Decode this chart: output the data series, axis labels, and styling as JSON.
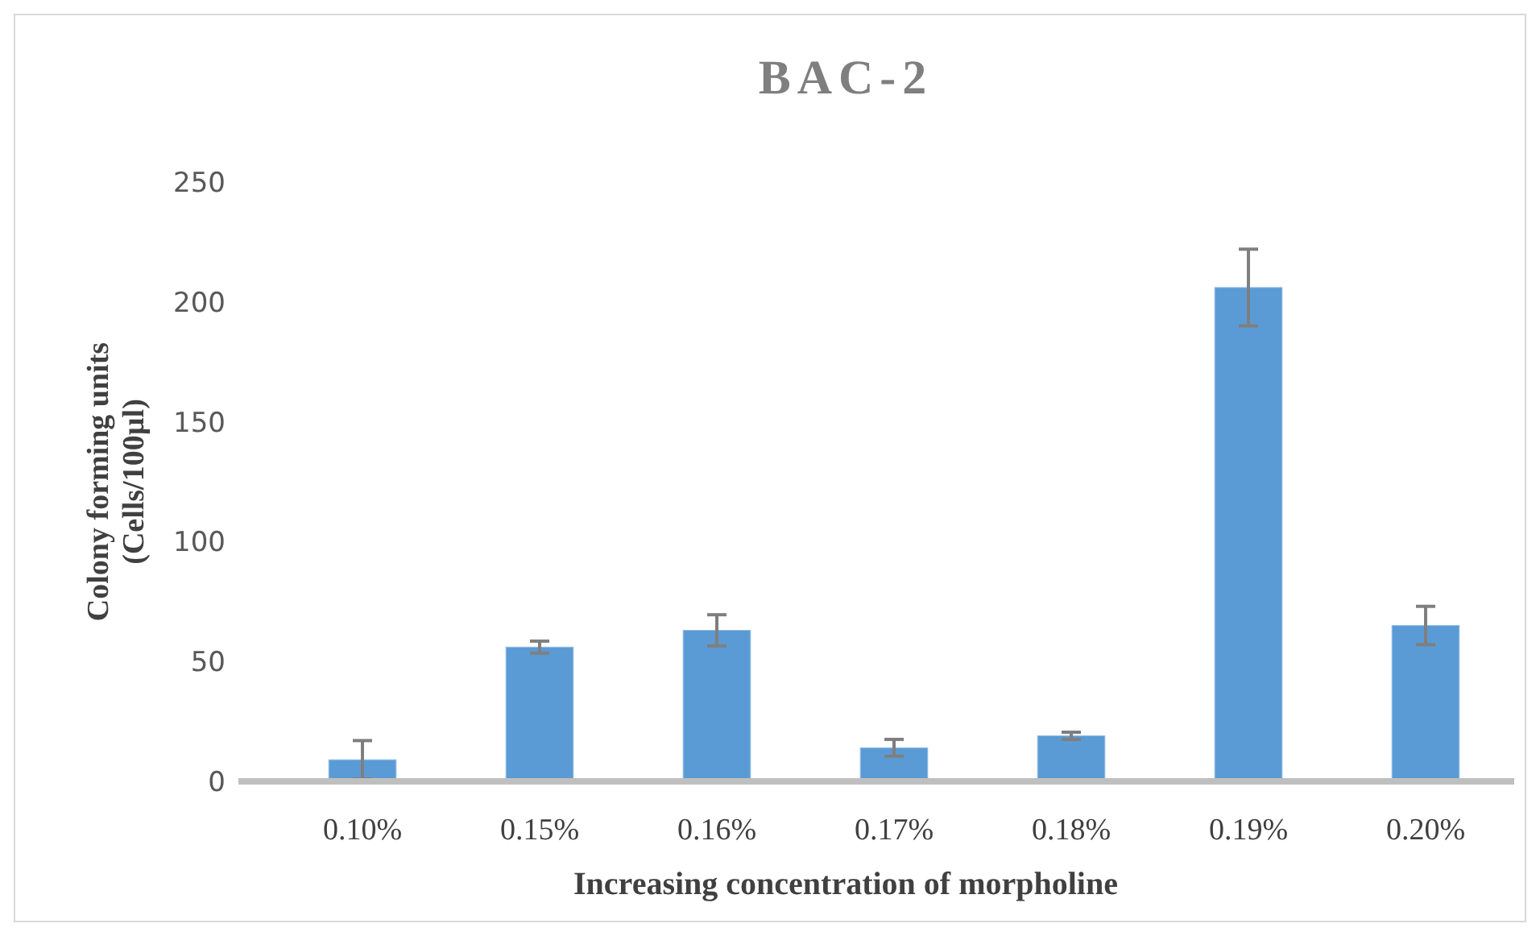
{
  "chart_data": {
    "type": "bar",
    "title": "BAC-2",
    "xlabel": "Increasing concentration of morpholine",
    "ylabel": "Colony forming units\n(Cells/100µl)",
    "categories": [
      "0.10%",
      "0.15%",
      "0.16%",
      "0.17%",
      "0.18%",
      "0.19%",
      "0.20%"
    ],
    "values": [
      9,
      56,
      63,
      14,
      19,
      206,
      65
    ],
    "errors": [
      8,
      2.5,
      6.5,
      3.5,
      1.5,
      16,
      8
    ],
    "color": "#5b9bd5",
    "ylim": [
      0,
      250
    ],
    "yticks": [
      0,
      50,
      100,
      150,
      200,
      250
    ],
    "grid": false
  }
}
